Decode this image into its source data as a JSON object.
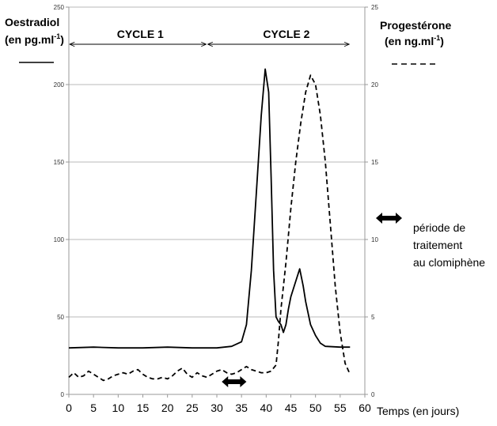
{
  "chart_data": {
    "type": "line",
    "xlabel": "Temps (en jours)",
    "x_ticks": [
      "0",
      "5",
      "10",
      "15",
      "20",
      "25",
      "30",
      "35",
      "40",
      "45",
      "50",
      "55",
      "60"
    ],
    "xlim": [
      0,
      60
    ],
    "y_left": {
      "label_line1": "Oestradiol",
      "label_line2_prefix": "(en pg.ml",
      "label_line2_sup": "-1",
      "label_line2_suffix": ")",
      "ylim": [
        0,
        250
      ],
      "ticks": [
        "0",
        "50",
        "100",
        "150",
        "200",
        "250"
      ]
    },
    "y_right": {
      "label_line1": "Progestérone",
      "label_line2_prefix": "(en ng.ml",
      "label_line2_sup": "-1",
      "label_line2_suffix": ")",
      "ylim": [
        0,
        25
      ],
      "ticks": [
        "0",
        "5",
        "10",
        "15",
        "20",
        "25"
      ]
    },
    "grid": true,
    "cycles": [
      {
        "label": "CYCLE 1",
        "start": 0,
        "end": 28
      },
      {
        "label": "CYCLE 2",
        "start": 28,
        "end": 57
      }
    ],
    "treatment": {
      "start": 31,
      "end": 36,
      "legend_lines": [
        "période de",
        "traitement",
        "au clomiphène"
      ]
    },
    "series": [
      {
        "style": "solid",
        "axis": "left",
        "points": [
          [
            0,
            30
          ],
          [
            5,
            30.5
          ],
          [
            10,
            30
          ],
          [
            15,
            30
          ],
          [
            20,
            30.5
          ],
          [
            25,
            30
          ],
          [
            30,
            30
          ],
          [
            33,
            31
          ],
          [
            35,
            34
          ],
          [
            36,
            45
          ],
          [
            37,
            80
          ],
          [
            38,
            130
          ],
          [
            39,
            180
          ],
          [
            39.8,
            210
          ],
          [
            40.5,
            195
          ],
          [
            41,
            140
          ],
          [
            41.5,
            80
          ],
          [
            42,
            50
          ],
          [
            42.5,
            47
          ],
          [
            43,
            45
          ],
          [
            43.5,
            40
          ],
          [
            44,
            45
          ],
          [
            44.5,
            55
          ],
          [
            45,
            63
          ],
          [
            46,
            73
          ],
          [
            46.8,
            81
          ],
          [
            47.5,
            70
          ],
          [
            48,
            60
          ],
          [
            49,
            45
          ],
          [
            50,
            38
          ],
          [
            51,
            33
          ],
          [
            52,
            31
          ],
          [
            55,
            30.5
          ],
          [
            57,
            30.5
          ]
        ]
      },
      {
        "style": "dashed",
        "axis": "right",
        "points": [
          [
            0,
            1.1
          ],
          [
            1,
            1.4
          ],
          [
            2,
            1.1
          ],
          [
            3,
            1.2
          ],
          [
            4,
            1.5
          ],
          [
            5,
            1.3
          ],
          [
            6,
            1.1
          ],
          [
            7,
            0.9
          ],
          [
            8,
            1.0
          ],
          [
            9,
            1.2
          ],
          [
            10,
            1.3
          ],
          [
            11,
            1.4
          ],
          [
            12,
            1.3
          ],
          [
            13,
            1.5
          ],
          [
            14,
            1.6
          ],
          [
            15,
            1.3
          ],
          [
            16,
            1.1
          ],
          [
            17,
            1.0
          ],
          [
            18,
            1.0
          ],
          [
            19,
            1.1
          ],
          [
            20,
            1.0
          ],
          [
            21,
            1.2
          ],
          [
            22,
            1.5
          ],
          [
            23,
            1.7
          ],
          [
            24,
            1.3
          ],
          [
            25,
            1.1
          ],
          [
            26,
            1.4
          ],
          [
            27,
            1.2
          ],
          [
            28,
            1.1
          ],
          [
            29,
            1.3
          ],
          [
            30,
            1.5
          ],
          [
            31,
            1.6
          ],
          [
            32,
            1.4
          ],
          [
            33,
            1.3
          ],
          [
            34,
            1.4
          ],
          [
            35,
            1.6
          ],
          [
            36,
            1.8
          ],
          [
            37,
            1.6
          ],
          [
            38,
            1.5
          ],
          [
            39,
            1.4
          ],
          [
            40,
            1.4
          ],
          [
            41,
            1.5
          ],
          [
            42,
            1.9
          ],
          [
            42.5,
            3.5
          ],
          [
            43,
            5.5
          ],
          [
            44,
            8.5
          ],
          [
            45,
            12
          ],
          [
            46,
            15
          ],
          [
            47,
            17.5
          ],
          [
            48,
            19.5
          ],
          [
            49,
            20.6
          ],
          [
            50,
            20
          ],
          [
            51,
            18
          ],
          [
            52,
            15
          ],
          [
            53,
            11
          ],
          [
            54,
            7
          ],
          [
            55,
            4
          ],
          [
            56,
            2
          ],
          [
            57,
            1.3
          ]
        ]
      }
    ]
  }
}
